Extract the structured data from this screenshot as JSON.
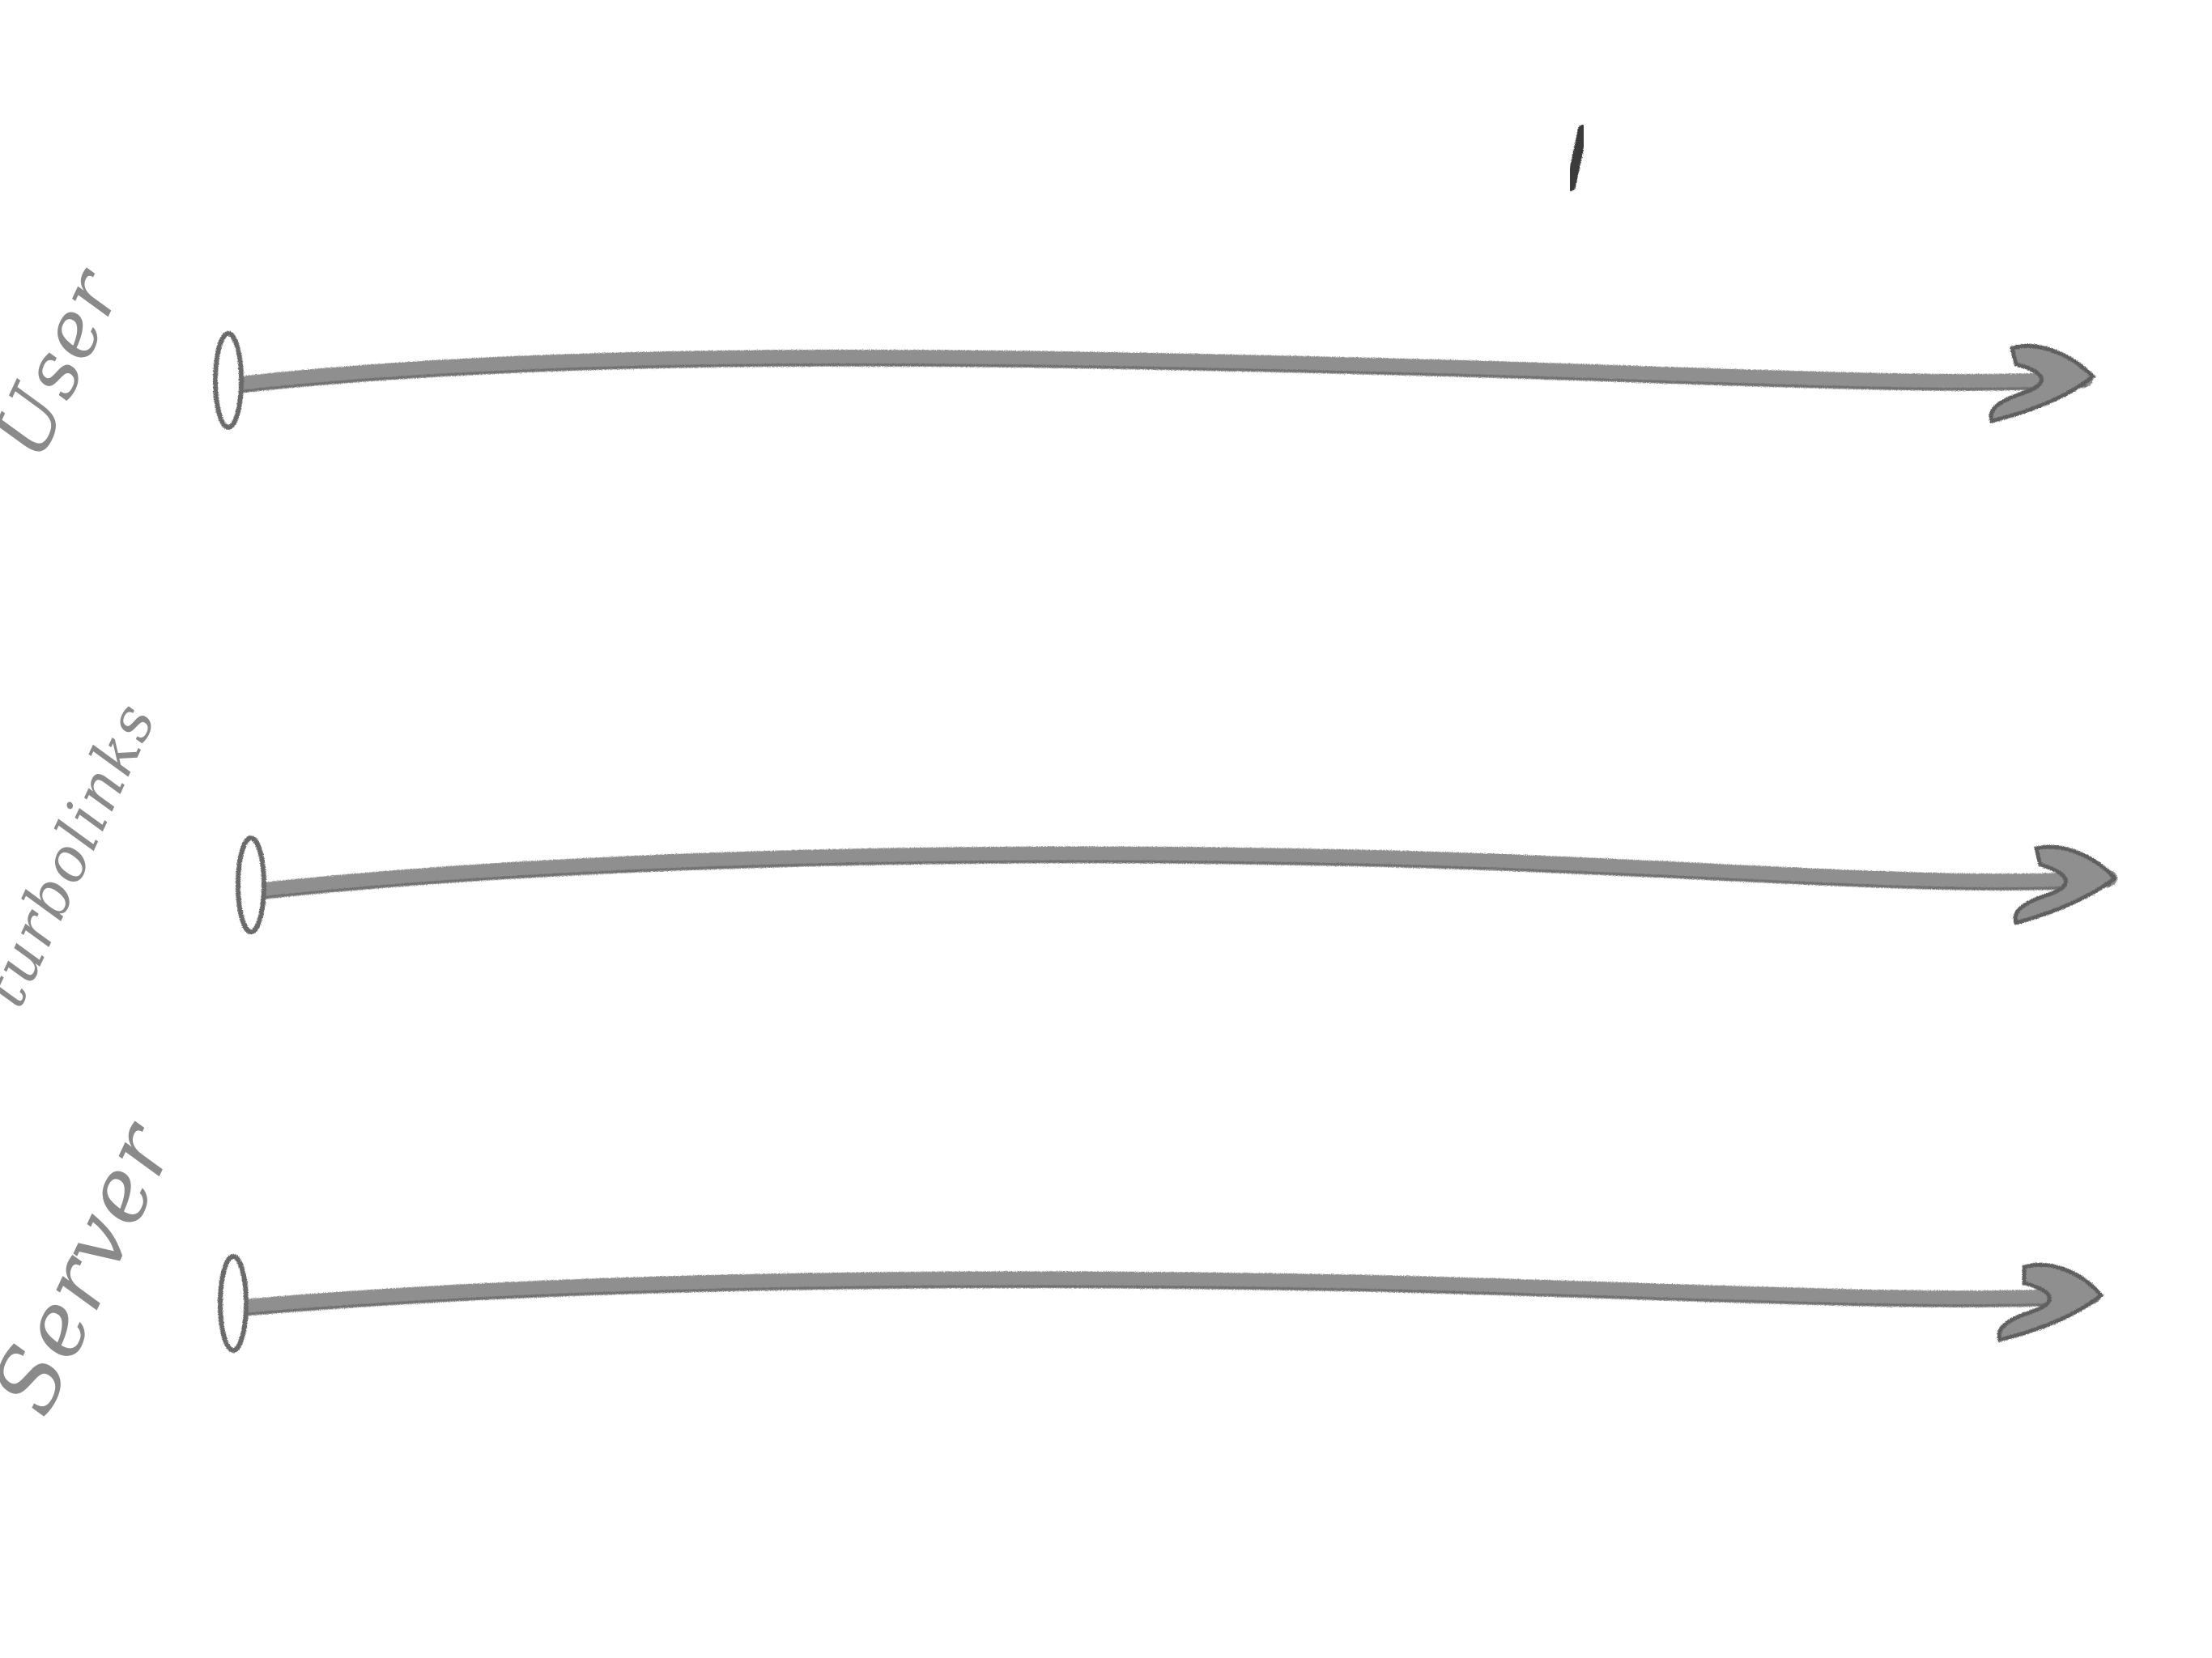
{
  "lanes": [
    {
      "id": "user",
      "label": "User"
    },
    {
      "id": "turbolinks",
      "label": "turbolinks"
    },
    {
      "id": "server",
      "label": "Server"
    }
  ],
  "colors": {
    "line": "#8f8f8f",
    "line_dark": "#5e5e5e",
    "label": "#8a8a8a",
    "mark": "#3a3a3a",
    "background": "#ffffff"
  },
  "icons": {
    "lane_start": "oval-cap-icon",
    "lane_end": "arrowhead-icon",
    "top_mark": "pencil-tick-icon"
  }
}
